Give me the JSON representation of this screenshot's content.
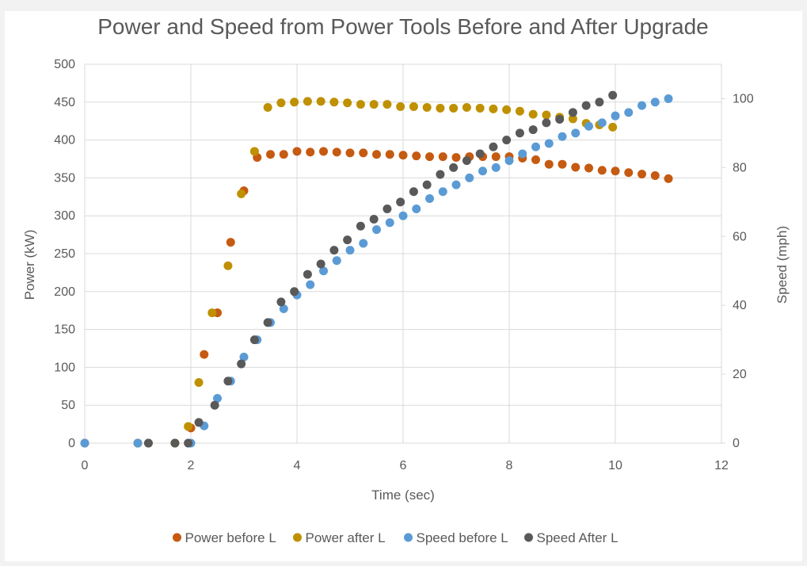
{
  "chart_data": {
    "type": "scatter",
    "title": "Power and Speed from Power Tools Before and After Upgrade",
    "xlabel": "Time (sec)",
    "ylabel": "Power (kW)",
    "y2label": "Speed (mph)",
    "xlim": [
      0,
      12
    ],
    "ylim": [
      0,
      500
    ],
    "y2lim": [
      0,
      110
    ],
    "xticks": [
      "0",
      "2",
      "4",
      "6",
      "8",
      "10",
      "12"
    ],
    "yticks": [
      "0",
      "50",
      "100",
      "150",
      "200",
      "250",
      "300",
      "350",
      "400",
      "450",
      "500"
    ],
    "y2ticks": [
      "0",
      "20",
      "40",
      "60",
      "80",
      "100"
    ],
    "grid": true,
    "legend_position": "bottom",
    "series": [
      {
        "name": "Power before L",
        "axis": "left",
        "color": "#c55a11",
        "x": [
          0,
          1,
          1.2,
          1.7,
          2.0,
          2.25,
          2.5,
          2.75,
          3.0,
          3.25,
          3.5,
          3.75,
          4.0,
          4.25,
          4.5,
          4.75,
          5.0,
          5.25,
          5.5,
          5.75,
          6.0,
          6.25,
          6.5,
          6.75,
          7.0,
          7.25,
          7.5,
          7.75,
          8.0,
          8.25,
          8.5,
          8.75,
          9.0,
          9.25,
          9.5,
          9.75,
          10.0,
          10.25,
          10.5,
          10.75,
          11.0
        ],
        "y": [
          0,
          0,
          0,
          0,
          20,
          117,
          172,
          265,
          333,
          377,
          381,
          381,
          385,
          384,
          385,
          384,
          383,
          383,
          381,
          381,
          380,
          379,
          378,
          378,
          377,
          378,
          378,
          378,
          378,
          376,
          374,
          368,
          368,
          364,
          363,
          360,
          359,
          357,
          355,
          353,
          349
        ]
      },
      {
        "name": "Power after L",
        "axis": "left",
        "color": "#bf9000",
        "x": [
          1.0,
          1.7,
          1.95,
          2.15,
          2.4,
          2.7,
          2.95,
          3.2,
          3.45,
          3.7,
          3.95,
          4.2,
          4.45,
          4.7,
          4.95,
          5.2,
          5.45,
          5.7,
          5.95,
          6.2,
          6.45,
          6.7,
          6.95,
          7.2,
          7.45,
          7.7,
          7.95,
          8.2,
          8.45,
          8.7,
          8.95,
          9.2,
          9.45,
          9.7,
          9.95
        ],
        "y": [
          0,
          0,
          22,
          80,
          172,
          234,
          329,
          385,
          443,
          449,
          450,
          451,
          451,
          450,
          449,
          447,
          447,
          447,
          444,
          444,
          443,
          442,
          442,
          443,
          442,
          441,
          440,
          438,
          434,
          433,
          430,
          428,
          422,
          420,
          417
        ]
      },
      {
        "name": "Speed before L",
        "axis": "right",
        "color": "#5b9bd5",
        "x": [
          0,
          1,
          2.0,
          2.25,
          2.5,
          2.75,
          3.0,
          3.25,
          3.5,
          3.75,
          4.0,
          4.25,
          4.5,
          4.75,
          5.0,
          5.25,
          5.5,
          5.75,
          6.0,
          6.25,
          6.5,
          6.75,
          7.0,
          7.25,
          7.5,
          7.75,
          8.0,
          8.25,
          8.5,
          8.75,
          9.0,
          9.25,
          9.5,
          9.75,
          10.0,
          10.25,
          10.5,
          10.75,
          11.0
        ],
        "y": [
          0,
          0,
          0,
          5,
          13,
          18,
          25,
          30,
          35,
          39,
          43,
          46,
          50,
          53,
          56,
          58,
          62,
          64,
          66,
          68,
          71,
          73,
          75,
          77,
          79,
          80,
          82,
          84,
          86,
          87,
          89,
          90,
          92,
          93,
          95,
          96,
          98,
          99,
          100
        ]
      },
      {
        "name": "Speed After L",
        "axis": "right",
        "color": "#595959",
        "x": [
          1.2,
          1.7,
          1.95,
          2.15,
          2.45,
          2.7,
          2.95,
          3.2,
          3.45,
          3.7,
          3.95,
          4.2,
          4.45,
          4.7,
          4.95,
          5.2,
          5.45,
          5.7,
          5.95,
          6.2,
          6.45,
          6.7,
          6.95,
          7.2,
          7.45,
          7.7,
          7.95,
          8.2,
          8.45,
          8.7,
          8.95,
          9.2,
          9.45,
          9.7,
          9.95
        ],
        "y": [
          0,
          0,
          0,
          6,
          11,
          18,
          23,
          30,
          35,
          41,
          44,
          49,
          52,
          56,
          59,
          63,
          65,
          68,
          70,
          73,
          75,
          78,
          80,
          82,
          84,
          86,
          88,
          90,
          91,
          93,
          94,
          96,
          98,
          99,
          101
        ]
      }
    ]
  }
}
